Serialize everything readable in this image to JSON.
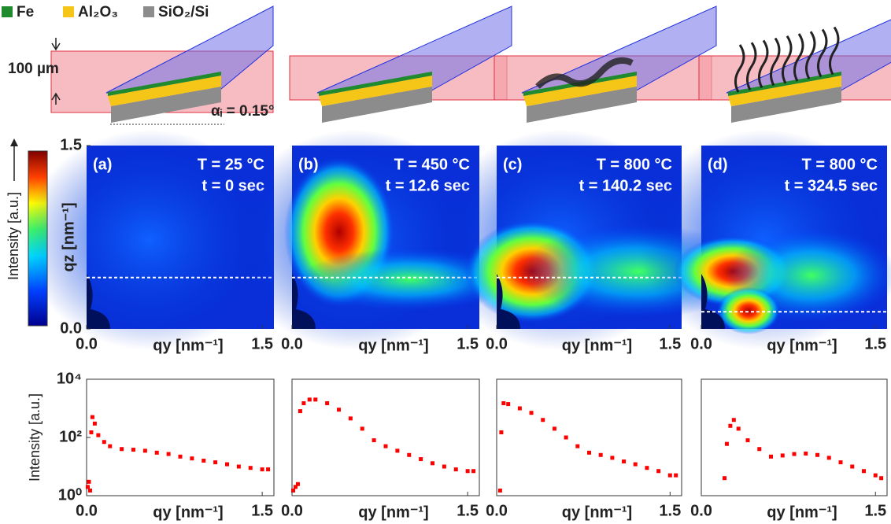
{
  "legend": [
    {
      "name": "Fe",
      "color": "#1f8a2e"
    },
    {
      "name": "Al₂O₃",
      "color": "#f5c518"
    },
    {
      "name": "SiO₂/Si",
      "color": "#8c8c8c"
    }
  ],
  "schematic": {
    "thickness_label": "100 µm",
    "angle_label": "αᵢ = 0.15°"
  },
  "colorbar": {
    "label": "Intensity [a.u.]"
  },
  "chart_data": [
    {
      "type": "heatmap",
      "panel": "(a)",
      "annotations": [
        "T = 25 °C",
        "t = 0 sec"
      ],
      "xlabel": "qy [nm⁻¹]",
      "ylabel": "qz [nm⁻¹]",
      "xlim": [
        0,
        1.6
      ],
      "ylim": [
        0,
        1.5
      ],
      "xticks": [
        {
          "value": 0,
          "label": "0.0"
        },
        1.5
      ],
      "yticks": [
        {
          "value": 0,
          "label": "0.0"
        },
        1.5
      ],
      "cut_qz": 0.42
    },
    {
      "type": "heatmap",
      "panel": "(b)",
      "annotations": [
        "T = 450 °C",
        "t = 12.6 sec"
      ],
      "xlabel": "qy [nm⁻¹]",
      "xlim": [
        0,
        1.6
      ],
      "ylim": [
        0,
        1.5
      ],
      "xticks": [
        {
          "value": 0,
          "label": "0.0"
        },
        1.5
      ],
      "cut_qz": 0.42
    },
    {
      "type": "heatmap",
      "panel": "(c)",
      "annotations": [
        "T = 800 °C",
        "t = 140.2 sec"
      ],
      "xlabel": "qy [nm⁻¹]",
      "xlim": [
        0,
        1.6
      ],
      "ylim": [
        0,
        1.5
      ],
      "xticks": [
        {
          "value": 0,
          "label": "0.0"
        },
        1.5
      ],
      "cut_qz": 0.42
    },
    {
      "type": "heatmap",
      "panel": "(d)",
      "annotations": [
        "T = 800 °C",
        "t = 324.5 sec"
      ],
      "xlabel": "qy [nm⁻¹]",
      "xlim": [
        0,
        1.6
      ],
      "ylim": [
        0,
        1.5
      ],
      "xticks": [
        {
          "value": 0,
          "label": "0.0"
        },
        1.5
      ],
      "cut_qz": 0.14
    },
    {
      "type": "scatter",
      "xlabel": "qy [nm⁻¹]",
      "ylabel": "Intensity [a.u.]",
      "log_y": true,
      "color": "#ff0000",
      "xlim": [
        0,
        1.6
      ],
      "ylim": [
        1,
        10000
      ],
      "xticks": [
        {
          "value": 0,
          "label": "0.0"
        },
        1.5
      ],
      "yticks": [
        {
          "value": 1,
          "label": "10⁰"
        },
        {
          "value": 100,
          "label": "10²"
        },
        {
          "value": 10000,
          "label": "10⁴"
        }
      ],
      "x": [
        0.01,
        0.02,
        0.03,
        0.04,
        0.05,
        0.07,
        0.1,
        0.15,
        0.2,
        0.3,
        0.4,
        0.5,
        0.6,
        0.7,
        0.8,
        0.9,
        1.0,
        1.1,
        1.2,
        1.3,
        1.4,
        1.5,
        1.55
      ],
      "values": [
        2,
        3,
        1.5,
        150,
        500,
        300,
        120,
        70,
        50,
        40,
        38,
        35,
        30,
        27,
        22,
        19,
        16,
        14,
        12,
        10,
        9,
        8,
        8
      ]
    },
    {
      "type": "scatter",
      "xlabel": "qy [nm⁻¹]",
      "log_y": true,
      "color": "#ff0000",
      "xlim": [
        0,
        1.6
      ],
      "ylim": [
        1,
        10000
      ],
      "xticks": [
        {
          "value": 0,
          "label": "0.0"
        },
        1.5
      ],
      "x": [
        0.01,
        0.03,
        0.05,
        0.07,
        0.1,
        0.15,
        0.2,
        0.3,
        0.4,
        0.5,
        0.6,
        0.7,
        0.8,
        0.9,
        1.0,
        1.1,
        1.2,
        1.3,
        1.4,
        1.5,
        1.55
      ],
      "values": [
        1.5,
        2,
        2.5,
        800,
        1500,
        2000,
        2000,
        1500,
        900,
        450,
        200,
        80,
        50,
        35,
        25,
        18,
        13,
        10,
        8,
        7,
        7
      ]
    },
    {
      "type": "scatter",
      "xlabel": "qy [nm⁻¹]",
      "log_y": true,
      "color": "#ff0000",
      "xlim": [
        0,
        1.6
      ],
      "ylim": [
        1,
        10000
      ],
      "xticks": [
        {
          "value": 0,
          "label": "0.0"
        },
        1.5
      ],
      "x": [
        0.03,
        0.04,
        0.06,
        0.1,
        0.2,
        0.3,
        0.4,
        0.5,
        0.6,
        0.7,
        0.8,
        0.9,
        1.0,
        1.1,
        1.2,
        1.3,
        1.4,
        1.5,
        1.55
      ],
      "values": [
        1.5,
        150,
        1500,
        1400,
        1000,
        700,
        400,
        200,
        100,
        50,
        30,
        25,
        20,
        15,
        12,
        9,
        7,
        5,
        5
      ]
    },
    {
      "type": "scatter",
      "xlabel": "qy [nm⁻¹]",
      "log_y": true,
      "color": "#ff0000",
      "xlim": [
        0,
        1.6
      ],
      "ylim": [
        1,
        10000
      ],
      "xticks": [
        {
          "value": 0,
          "label": "0.0"
        },
        1.5
      ],
      "x": [
        0.2,
        0.22,
        0.25,
        0.28,
        0.32,
        0.4,
        0.5,
        0.6,
        0.7,
        0.8,
        0.9,
        1.0,
        1.1,
        1.2,
        1.3,
        1.4,
        1.5,
        1.55
      ],
      "values": [
        4,
        60,
        250,
        400,
        200,
        80,
        40,
        22,
        24,
        27,
        28,
        25,
        20,
        14,
        10,
        7,
        5,
        4
      ]
    }
  ]
}
